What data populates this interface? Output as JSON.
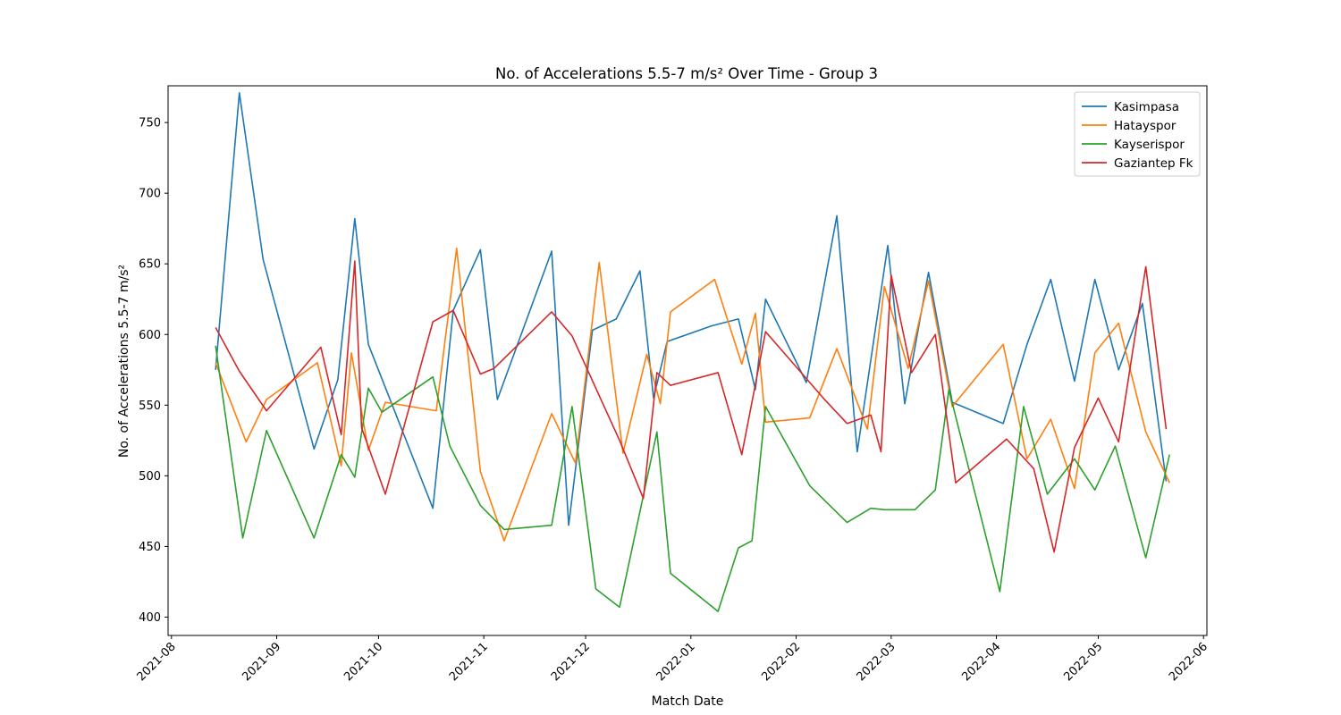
{
  "chart_data": {
    "type": "line",
    "title": "No. of Accelerations 5.5-7 m/s² Over Time - Group 3",
    "xlabel": "Match Date",
    "ylabel": "No. of Accelerations 5.5-7 m/s²",
    "xlim": [
      "2021-07-31",
      "2022-06-02"
    ],
    "ylim": [
      387,
      776
    ],
    "x_ticks": [
      "2021-08-01",
      "2021-09-01",
      "2021-10-01",
      "2021-11-01",
      "2021-12-01",
      "2022-01-01",
      "2022-02-01",
      "2022-03-01",
      "2022-04-01",
      "2022-05-01",
      "2022-06-01"
    ],
    "x_tick_labels": [
      "2021-08",
      "2021-09",
      "2021-10",
      "2021-11",
      "2021-12",
      "2022-01",
      "2022-02",
      "2022-03",
      "2022-04",
      "2022-05",
      "2022-06"
    ],
    "y_ticks": [
      400,
      450,
      500,
      550,
      600,
      650,
      700,
      750
    ],
    "y_tick_labels": [
      "400",
      "450",
      "500",
      "550",
      "600",
      "650",
      "700",
      "750"
    ],
    "legend_position": "top-right",
    "grid": false,
    "series": [
      {
        "name": "Kasimpasa",
        "color": "#1f77b4",
        "points": [
          [
            "2021-08-14",
            575
          ],
          [
            "2021-08-21",
            771
          ],
          [
            "2021-08-28",
            653
          ],
          [
            "2021-09-12",
            519
          ],
          [
            "2021-09-19",
            568
          ],
          [
            "2021-09-24",
            682
          ],
          [
            "2021-09-28",
            593
          ],
          [
            "2021-10-17",
            477
          ],
          [
            "2021-10-23",
            617
          ],
          [
            "2021-10-31",
            660
          ],
          [
            "2021-11-05",
            554
          ],
          [
            "2021-11-21",
            659
          ],
          [
            "2021-11-26",
            465
          ],
          [
            "2021-12-03",
            603
          ],
          [
            "2021-12-10",
            611
          ],
          [
            "2021-12-17",
            645
          ],
          [
            "2021-12-21",
            555
          ],
          [
            "2021-12-25",
            595
          ],
          [
            "2022-01-07",
            606
          ],
          [
            "2022-01-15",
            611
          ],
          [
            "2022-01-20",
            561
          ],
          [
            "2022-01-23",
            625
          ],
          [
            "2022-02-04",
            566
          ],
          [
            "2022-02-13",
            684
          ],
          [
            "2022-02-19",
            517
          ],
          [
            "2022-02-28",
            663
          ],
          [
            "2022-03-05",
            551
          ],
          [
            "2022-03-12",
            644
          ],
          [
            "2022-03-19",
            552
          ],
          [
            "2022-04-03",
            537
          ],
          [
            "2022-04-10",
            593
          ],
          [
            "2022-04-17",
            639
          ],
          [
            "2022-04-24",
            567
          ],
          [
            "2022-04-30",
            639
          ],
          [
            "2022-05-07",
            575
          ],
          [
            "2022-05-14",
            622
          ],
          [
            "2022-05-21",
            496
          ]
        ]
      },
      {
        "name": "Hatayspor",
        "color": "#ff7f0e",
        "points": [
          [
            "2021-08-14",
            580
          ],
          [
            "2021-08-23",
            524
          ],
          [
            "2021-08-29",
            554
          ],
          [
            "2021-09-13",
            580
          ],
          [
            "2021-09-20",
            507
          ],
          [
            "2021-09-23",
            587
          ],
          [
            "2021-09-28",
            518
          ],
          [
            "2021-10-03",
            552
          ],
          [
            "2021-10-18",
            546
          ],
          [
            "2021-10-24",
            661
          ],
          [
            "2021-10-31",
            503
          ],
          [
            "2021-11-07",
            454
          ],
          [
            "2021-11-21",
            544
          ],
          [
            "2021-11-28",
            509
          ],
          [
            "2021-12-05",
            651
          ],
          [
            "2021-12-12",
            516
          ],
          [
            "2021-12-19",
            586
          ],
          [
            "2021-12-23",
            551
          ],
          [
            "2021-12-26",
            616
          ],
          [
            "2022-01-08",
            639
          ],
          [
            "2022-01-16",
            579
          ],
          [
            "2022-01-20",
            615
          ],
          [
            "2022-01-23",
            538
          ],
          [
            "2022-02-05",
            541
          ],
          [
            "2022-02-13",
            590
          ],
          [
            "2022-02-22",
            533
          ],
          [
            "2022-02-27",
            634
          ],
          [
            "2022-03-06",
            576
          ],
          [
            "2022-03-12",
            638
          ],
          [
            "2022-03-19",
            549
          ],
          [
            "2022-04-03",
            593
          ],
          [
            "2022-04-10",
            512
          ],
          [
            "2022-04-17",
            540
          ],
          [
            "2022-04-24",
            491
          ],
          [
            "2022-04-30",
            587
          ],
          [
            "2022-05-07",
            608
          ],
          [
            "2022-05-15",
            531
          ],
          [
            "2022-05-22",
            495
          ]
        ]
      },
      {
        "name": "Kayserispor",
        "color": "#2ca02c",
        "points": [
          [
            "2021-08-14",
            592
          ],
          [
            "2021-08-22",
            456
          ],
          [
            "2021-08-29",
            532
          ],
          [
            "2021-09-12",
            456
          ],
          [
            "2021-09-20",
            515
          ],
          [
            "2021-09-24",
            499
          ],
          [
            "2021-09-28",
            562
          ],
          [
            "2021-10-02",
            545
          ],
          [
            "2021-10-17",
            570
          ],
          [
            "2021-10-22",
            521
          ],
          [
            "2021-10-31",
            479
          ],
          [
            "2021-11-07",
            462
          ],
          [
            "2021-11-21",
            465
          ],
          [
            "2021-11-27",
            549
          ],
          [
            "2021-12-04",
            420
          ],
          [
            "2021-12-11",
            407
          ],
          [
            "2021-12-22",
            531
          ],
          [
            "2021-12-26",
            431
          ],
          [
            "2022-01-09",
            404
          ],
          [
            "2022-01-15",
            449
          ],
          [
            "2022-01-19",
            454
          ],
          [
            "2022-01-23",
            549
          ],
          [
            "2022-02-05",
            493
          ],
          [
            "2022-02-16",
            467
          ],
          [
            "2022-02-23",
            477
          ],
          [
            "2022-02-27",
            476
          ],
          [
            "2022-03-08",
            476
          ],
          [
            "2022-03-14",
            490
          ],
          [
            "2022-03-18",
            561
          ],
          [
            "2022-04-02",
            418
          ],
          [
            "2022-04-09",
            549
          ],
          [
            "2022-04-16",
            487
          ],
          [
            "2022-04-24",
            512
          ],
          [
            "2022-04-30",
            490
          ],
          [
            "2022-05-06",
            521
          ],
          [
            "2022-05-15",
            442
          ],
          [
            "2022-05-22",
            515
          ]
        ]
      },
      {
        "name": "Gaziantep Fk",
        "color": "#d62728",
        "points": [
          [
            "2021-08-14",
            605
          ],
          [
            "2021-08-21",
            574
          ],
          [
            "2021-08-29",
            546
          ],
          [
            "2021-09-14",
            591
          ],
          [
            "2021-09-20",
            529
          ],
          [
            "2021-09-24",
            652
          ],
          [
            "2021-09-26",
            534
          ],
          [
            "2021-10-03",
            487
          ],
          [
            "2021-10-17",
            609
          ],
          [
            "2021-10-23",
            617
          ],
          [
            "2021-10-31",
            572
          ],
          [
            "2021-11-04",
            576
          ],
          [
            "2021-11-21",
            616
          ],
          [
            "2021-11-27",
            599
          ],
          [
            "2021-12-11",
            525
          ],
          [
            "2021-12-18",
            484
          ],
          [
            "2021-12-22",
            573
          ],
          [
            "2021-12-26",
            564
          ],
          [
            "2022-01-09",
            573
          ],
          [
            "2022-01-16",
            515
          ],
          [
            "2022-01-23",
            602
          ],
          [
            "2022-02-09",
            555
          ],
          [
            "2022-02-16",
            537
          ],
          [
            "2022-02-23",
            543
          ],
          [
            "2022-02-26",
            517
          ],
          [
            "2022-03-01",
            642
          ],
          [
            "2022-03-07",
            573
          ],
          [
            "2022-03-14",
            600
          ],
          [
            "2022-03-20",
            495
          ],
          [
            "2022-04-04",
            526
          ],
          [
            "2022-04-12",
            505
          ],
          [
            "2022-04-18",
            446
          ],
          [
            "2022-04-24",
            520
          ],
          [
            "2022-05-01",
            555
          ],
          [
            "2022-05-07",
            524
          ],
          [
            "2022-05-15",
            648
          ],
          [
            "2022-05-21",
            533
          ]
        ]
      }
    ]
  }
}
